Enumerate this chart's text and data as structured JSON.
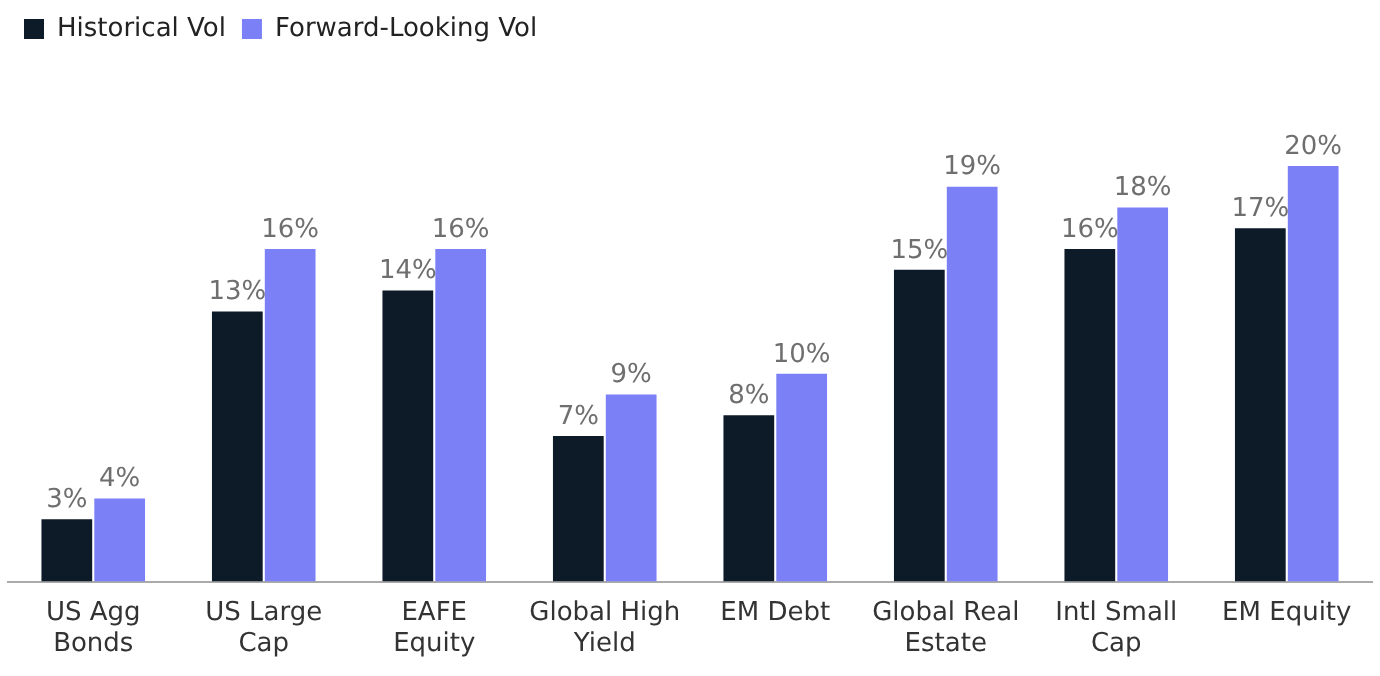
{
  "chart_data": {
    "type": "bar",
    "categories": [
      "US Agg Bonds",
      "US Large Cap",
      "EAFE Equity",
      "Global High Yield",
      "EM Debt",
      "Global Real Estate",
      "Intl Small Cap",
      "EM Equity"
    ],
    "series": [
      {
        "name": "Historical Vol",
        "color": "#0d1a28",
        "values": [
          3,
          13,
          14,
          7,
          8,
          15,
          16,
          17
        ],
        "value_labels": [
          "3%",
          "13%",
          "14%",
          "7%",
          "8%",
          "15%",
          "16%",
          "17%"
        ]
      },
      {
        "name": "Forward-Looking Vol",
        "color": "#7b80f7",
        "values": [
          4,
          16,
          16,
          9,
          10,
          19,
          18,
          20
        ],
        "value_labels": [
          "4%",
          "16%",
          "16%",
          "9%",
          "10%",
          "19%",
          "18%",
          "20%"
        ]
      }
    ],
    "legend": "top left",
    "grid": false
  }
}
